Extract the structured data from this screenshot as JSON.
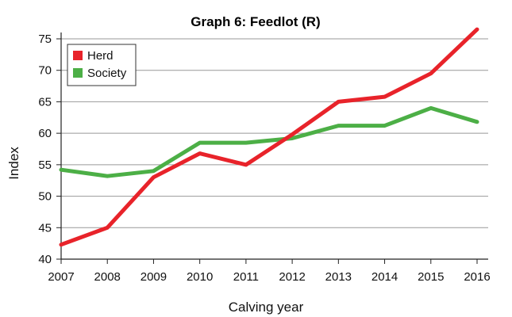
{
  "chart_data": {
    "type": "line",
    "title": "Graph 6: Feedlot (R)",
    "xlabel": "Calving year",
    "ylabel": "Index",
    "x": [
      "2007",
      "2008",
      "2009",
      "2010",
      "2011",
      "2012",
      "2013",
      "2014",
      "2015",
      "2016"
    ],
    "ylim": [
      40,
      75
    ],
    "yticks": [
      40,
      45,
      50,
      55,
      60,
      65,
      70,
      75
    ],
    "grid": true,
    "legend_position": "top-left",
    "series": [
      {
        "name": "Herd",
        "color": "#e8232a",
        "values": [
          42.3,
          45,
          53,
          56.8,
          55,
          59.8,
          65,
          65.8,
          69.5,
          76.5
        ]
      },
      {
        "name": "Society",
        "color": "#4caf46",
        "values": [
          54.2,
          53.2,
          54,
          58.5,
          58.5,
          59.2,
          61.2,
          61.2,
          64,
          61.8
        ]
      }
    ]
  }
}
